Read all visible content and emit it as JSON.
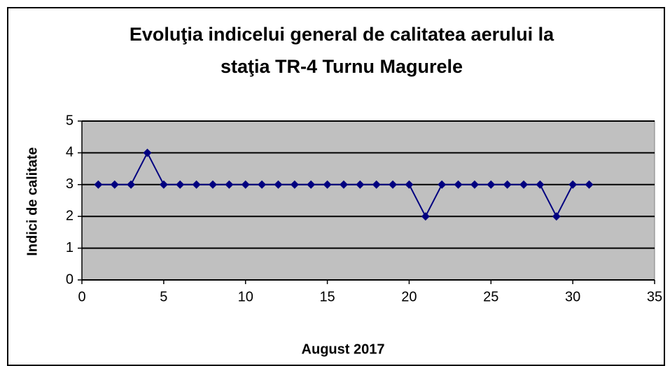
{
  "chart_data": {
    "type": "line",
    "title": [
      "Evoluţia indicelui general de calitatea aerului la",
      "staţia TR-4 Turnu Magurele"
    ],
    "x_label": "August 2017",
    "y_label": "Indici de calitate",
    "x": [
      1,
      2,
      3,
      4,
      5,
      6,
      7,
      8,
      9,
      10,
      11,
      12,
      13,
      14,
      15,
      16,
      17,
      18,
      19,
      20,
      21,
      22,
      23,
      24,
      25,
      26,
      27,
      28,
      29,
      30,
      31
    ],
    "series": [
      {
        "color": "#000080",
        "values": [
          3,
          3,
          3,
          4,
          3,
          3,
          3,
          3,
          3,
          3,
          3,
          3,
          3,
          3,
          3,
          3,
          3,
          3,
          3,
          3,
          2,
          3,
          3,
          3,
          3,
          3,
          3,
          3,
          2,
          3,
          3
        ]
      }
    ],
    "xlim": [
      0,
      35
    ],
    "xticks": [
      0,
      5,
      10,
      15,
      20,
      25,
      30,
      35
    ],
    "ylim": [
      0,
      5
    ],
    "yticks": [
      0,
      1,
      2,
      3,
      4,
      5
    ],
    "grid": true
  }
}
